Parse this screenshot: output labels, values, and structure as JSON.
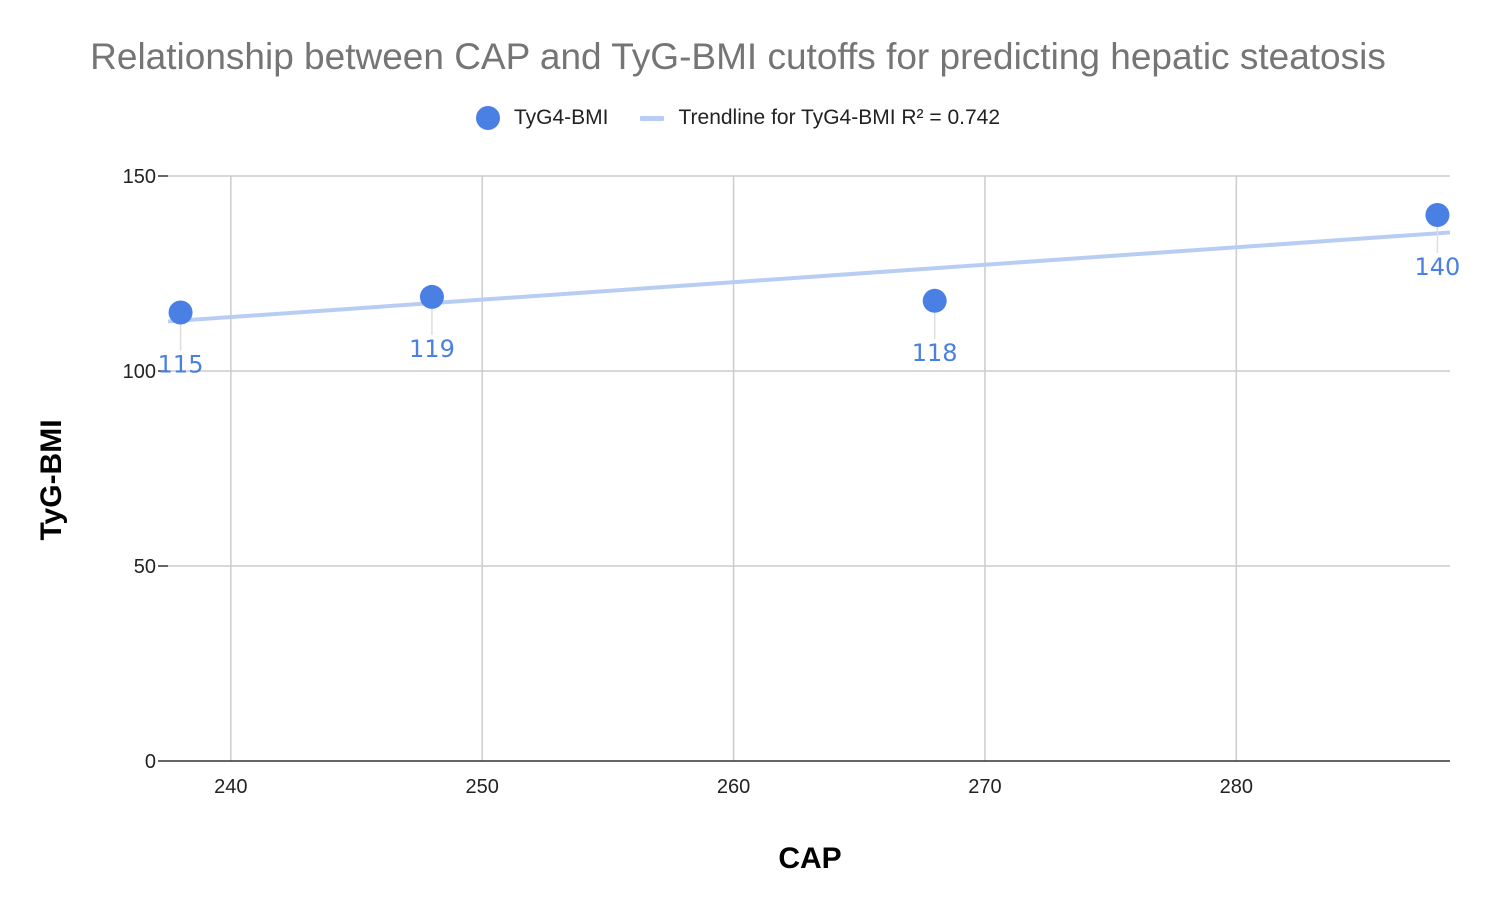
{
  "chart_data": {
    "type": "scatter",
    "title": "Relationship between CAP and TyG-BMI cutoffs for predicting hepatic steatosis",
    "xlabel": "CAP",
    "ylabel": "TyG-BMI",
    "xlim": [
      237.5,
      288.5
    ],
    "ylim": [
      0,
      150
    ],
    "xticks": [
      240,
      250,
      260,
      270,
      280
    ],
    "yticks": [
      0,
      50,
      100,
      150
    ],
    "grid": true,
    "legend_position": "top",
    "series": [
      {
        "name": "TyG4-BMI",
        "color": "#4a7fe3",
        "points": [
          {
            "x": 238,
            "y": 115,
            "label": "115"
          },
          {
            "x": 248,
            "y": 119,
            "label": "119"
          },
          {
            "x": 268,
            "y": 118,
            "label": "118"
          },
          {
            "x": 288,
            "y": 140,
            "label": "140"
          }
        ]
      }
    ],
    "trendline": {
      "name": "Trendline for TyG4-BMI R² = 0.742",
      "color": "#b8cdf4",
      "type": "linear",
      "x_range": [
        237.5,
        288.5
      ]
    }
  }
}
